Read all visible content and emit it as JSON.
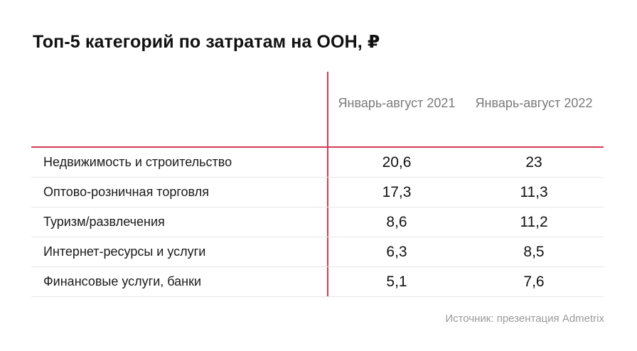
{
  "title": "Топ-5 категорий по затратам на ООН, ₽",
  "source": "Источник: презентация Admetrix",
  "colors": {
    "accent_red": "#d23a52",
    "text": "#1a1a1a",
    "muted": "#7a7a7a"
  },
  "chart_data": {
    "type": "table",
    "title": "Топ-5 категорий по затратам на ООН, ₽",
    "columns": [
      "Январь-август 2021",
      "Январь-август 2022"
    ],
    "rows": [
      {
        "label": "Недвижимость и строительство",
        "v2021": "20,6",
        "v2022": "23"
      },
      {
        "label": "Оптово-розничная торговля",
        "v2021": "17,3",
        "v2022": "11,3"
      },
      {
        "label": "Туризм/развлечения",
        "v2021": "8,6",
        "v2022": "11,2"
      },
      {
        "label": "Интернет-ресурсы и услуги",
        "v2021": "6,3",
        "v2022": "8,5"
      },
      {
        "label": "Финансовые услуги, банки",
        "v2021": "5,1",
        "v2022": "7,6"
      }
    ]
  }
}
